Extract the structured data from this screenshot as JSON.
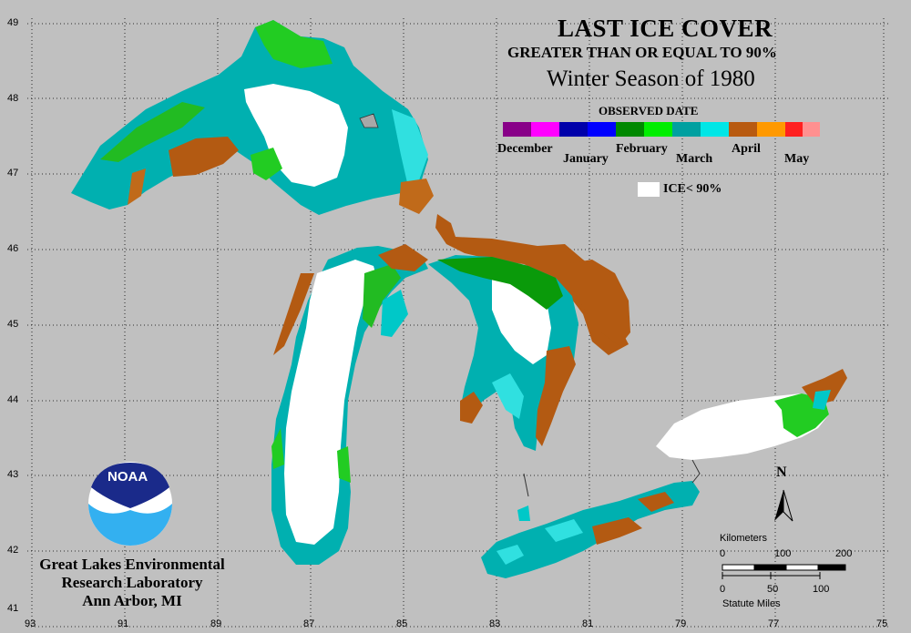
{
  "title": "LAST ICE COVER",
  "subtitle": "GREATER THAN OR EQUAL TO 90%",
  "season": "Winter Season of 1980",
  "legend": {
    "heading": "OBSERVED DATE",
    "months": [
      "December",
      "January",
      "February",
      "March",
      "April",
      "May"
    ],
    "month_colors": [
      [
        "#880088",
        "#ff00ff"
      ],
      [
        "#0000aa",
        "#0000ff"
      ],
      [
        "#008800",
        "#00ee00"
      ],
      [
        "#00a0a0",
        "#00e6e6"
      ],
      [
        "#b85a10",
        "#ff9900"
      ],
      [
        "#ff2020",
        "#ff9090"
      ]
    ],
    "ice_label": "ICE< 90%",
    "ice_color": "#ffffff"
  },
  "latitude_labels": [
    "49",
    "48",
    "47",
    "46",
    "45",
    "44",
    "43",
    "42",
    "41"
  ],
  "longitude_labels": [
    "93",
    "91",
    "89",
    "87",
    "85",
    "83",
    "81",
    "79",
    "77",
    "75"
  ],
  "north_label": "N",
  "scale": {
    "km_title": "Kilometers",
    "km_ticks": [
      "0",
      "100",
      "200"
    ],
    "mi_ticks": [
      "0",
      "50",
      "100"
    ],
    "mi_title": "Statute Miles"
  },
  "logo_text": "NOAA",
  "lab": {
    "line1": "Great Lakes Environmental",
    "line2": "Research Laboratory",
    "line3": "Ann Arbor, MI"
  }
}
